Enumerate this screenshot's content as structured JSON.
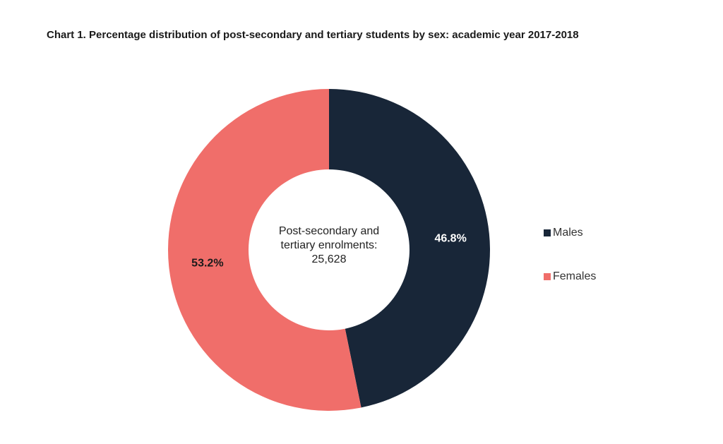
{
  "chart_data": {
    "type": "pie",
    "title": "Chart 1. Percentage distribution of post-secondary and tertiary students by sex: academic year 2017-2018",
    "center_label": [
      "Post-secondary and",
      "tertiary enrolments:",
      "25,628"
    ],
    "slices": [
      {
        "label": "Males",
        "value": 46.8,
        "display": "46.8%",
        "color": "#182638"
      },
      {
        "label": "Females",
        "value": 53.2,
        "display": "53.2%",
        "color": "#f06e6a"
      }
    ],
    "legend_position": "right",
    "donut": true
  }
}
